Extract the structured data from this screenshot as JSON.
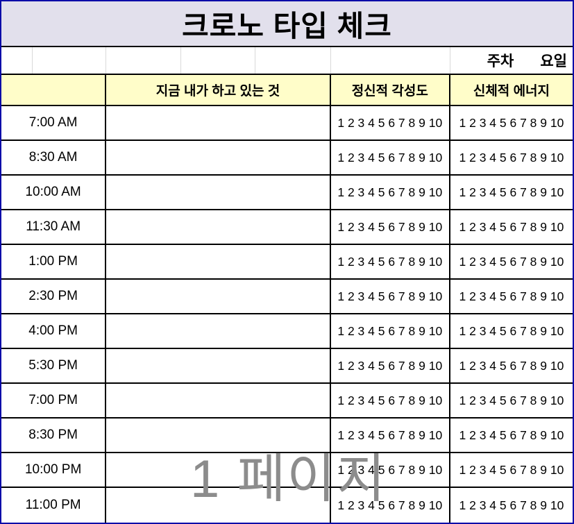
{
  "title": "크로노 타입 체크",
  "meta_row": {
    "week_label": "주차",
    "day_label": "요일"
  },
  "header": {
    "time_label": "",
    "activity_label": "지금 내가 하고 있는 것",
    "mental_label": "정신적 각성도",
    "physical_label": "신체적 에너지"
  },
  "rows": [
    {
      "time": "7:00 AM",
      "activity": "",
      "mental_scale": "1 2 3 4 5 6 7 8 9 10",
      "physical_scale": "1 2 3 4 5 6 7 8 9 10"
    },
    {
      "time": "8:30 AM",
      "activity": "",
      "mental_scale": "1 2 3 4 5 6 7 8 9 10",
      "physical_scale": "1 2 3 4 5 6 7 8 9 10"
    },
    {
      "time": "10:00 AM",
      "activity": "",
      "mental_scale": "1 2 3 4 5 6 7 8 9 10",
      "physical_scale": "1 2 3 4 5 6 7 8 9 10"
    },
    {
      "time": "11:30 AM",
      "activity": "",
      "mental_scale": "1 2 3 4 5 6 7 8 9 10",
      "physical_scale": "1 2 3 4 5 6 7 8 9 10"
    },
    {
      "time": "1:00 PM",
      "activity": "",
      "mental_scale": "1 2 3 4 5 6 7 8 9 10",
      "physical_scale": "1 2 3 4 5 6 7 8 9 10"
    },
    {
      "time": "2:30 PM",
      "activity": "",
      "mental_scale": "1 2 3 4 5 6 7 8 9 10",
      "physical_scale": "1 2 3 4 5 6 7 8 9 10"
    },
    {
      "time": "4:00 PM",
      "activity": "",
      "mental_scale": "1 2 3 4 5 6 7 8 9 10",
      "physical_scale": "1 2 3 4 5 6 7 8 9 10"
    },
    {
      "time": "5:30 PM",
      "activity": "",
      "mental_scale": "1 2 3 4 5 6 7 8 9 10",
      "physical_scale": "1 2 3 4 5 6 7 8 9 10"
    },
    {
      "time": "7:00 PM",
      "activity": "",
      "mental_scale": "1 2 3 4 5 6 7 8 9 10",
      "physical_scale": "1 2 3 4 5 6 7 8 9 10"
    },
    {
      "time": "8:30 PM",
      "activity": "",
      "mental_scale": "1 2 3 4 5 6 7 8 9 10",
      "physical_scale": "1 2 3 4 5 6 7 8 9 10"
    },
    {
      "time": "10:00 PM",
      "activity": "",
      "mental_scale": "1 2 3 4 5 6 7 8 9 10",
      "physical_scale": "1 2 3 4 5 6 7 8 9 10"
    },
    {
      "time": "11:00 PM",
      "activity": "",
      "mental_scale": "1 2 3 4 5 6 7 8 9 10",
      "physical_scale": "1 2 3 4 5 6 7 8 9 10"
    }
  ],
  "watermark": "1 페이지",
  "colors": {
    "title_bg": "#e2e0ec",
    "header_bg": "#fffdc9",
    "outer_border": "#0a0aa8",
    "grid_line": "#000000",
    "faint_grid_line": "#d9d9d9",
    "watermark_text": "#8c8c8c"
  }
}
